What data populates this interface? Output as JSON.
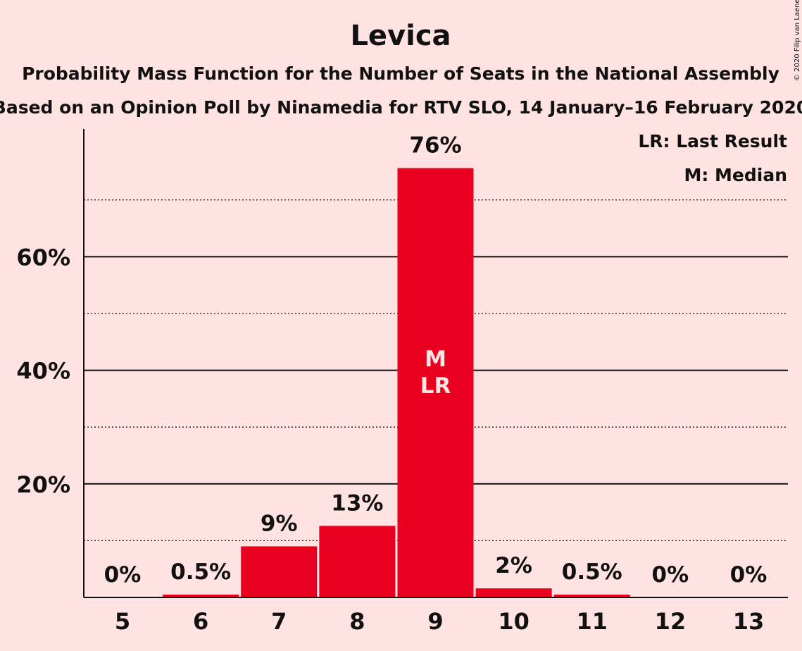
{
  "title": "Levica",
  "subtitle1": "Probability Mass Function for the Number of Seats in the National Assembly",
  "subtitle2": "Based on an Opinion Poll by Ninamedia for RTV SLO, 14 January–16 February 2020",
  "credit": "© 2020 Filip van Laenen",
  "legend": {
    "last_result": "LR: Last Result",
    "median": "M: Median"
  },
  "colors": {
    "background": "#FFE2E2",
    "bar": "#E8001E",
    "text": "#111111"
  },
  "chart_data": {
    "type": "bar",
    "categories": [
      "5",
      "6",
      "7",
      "8",
      "9",
      "10",
      "11",
      "12",
      "13"
    ],
    "values": [
      0,
      0.5,
      9,
      12.6,
      75.6,
      1.6,
      0.5,
      0,
      0
    ],
    "data_labels": [
      "0%",
      "0.5%",
      "9%",
      "13%",
      "76%",
      "2%",
      "0.5%",
      "0%",
      "0%"
    ],
    "y_ticks": [
      {
        "value": 20,
        "label": "20%"
      },
      {
        "value": 40,
        "label": "40%"
      },
      {
        "value": 60,
        "label": "60%"
      }
    ],
    "minor_gridlines": [
      10,
      30,
      50,
      70
    ],
    "ylim": [
      0,
      82.5
    ],
    "bar_annotations": [
      {
        "category": "9",
        "lines": [
          "M",
          "LR"
        ]
      }
    ],
    "legend_position": "top-right",
    "grid": true
  }
}
